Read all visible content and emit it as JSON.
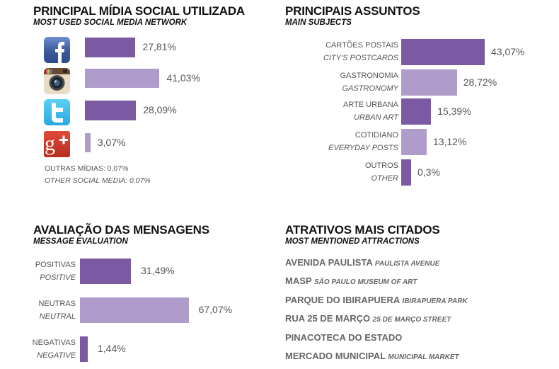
{
  "colors": {
    "dark": "#7b59a3",
    "light": "#b09ccb"
  },
  "chart_data": [
    {
      "type": "bar",
      "orientation": "horizontal",
      "title": "PRINCIPAL MÍDIA SOCIAL UTILIZADA",
      "subtitle": "MOST USED SOCIAL MEDIA NETWORK",
      "categories": [
        "Facebook",
        "Instagram",
        "Twitter",
        "Google+"
      ],
      "values": [
        27.81,
        41.03,
        28.09,
        3.07
      ],
      "value_labels": [
        "27,81%",
        "41,03%",
        "28,09%",
        "3,07%"
      ],
      "icons": [
        "facebook-icon",
        "instagram-icon",
        "twitter-icon",
        "google-plus-icon"
      ],
      "note_pt": "OUTRAS MÍDIAS: 0,07%",
      "note_en": "OTHER SOCIAL MEDIA: 0,07%"
    },
    {
      "type": "bar",
      "orientation": "horizontal",
      "title": "PRINCIPAIS ASSUNTOS",
      "subtitle": "MAIN SUBJECTS",
      "categories": [
        {
          "pt": "CARTÕES POSTAIS",
          "en": "CITY'S POSTCARDS"
        },
        {
          "pt": "GASTRONOMIA",
          "en": "GASTRONOMY"
        },
        {
          "pt": "ARTE URBANA",
          "en": "URBAN ART"
        },
        {
          "pt": "COTIDIANO",
          "en": "EVERYDAY POSTS"
        },
        {
          "pt": "OUTROS",
          "en": "OTHER"
        }
      ],
      "values": [
        43.07,
        28.72,
        15.39,
        13.12,
        0.3
      ],
      "value_labels": [
        "43,07%",
        "28,72%",
        "15,39%",
        "13,12%",
        "0,3%"
      ]
    },
    {
      "type": "bar",
      "orientation": "horizontal",
      "title": "AVALIAÇÃO DAS MENSAGENS",
      "subtitle": "MESSAGE EVALUATION",
      "categories": [
        {
          "pt": "POSITIVAS",
          "en": "POSITIVE"
        },
        {
          "pt": "NEUTRAS",
          "en": "NEUTRAL"
        },
        {
          "pt": "NEGATIVAS",
          "en": "NEGATIVE"
        }
      ],
      "values": [
        31.49,
        67.07,
        1.44
      ],
      "value_labels": [
        "31,49%",
        "67,07%",
        "1,44%"
      ]
    }
  ],
  "attractions": {
    "title": "ATRATIVOS MAIS CITADOS",
    "subtitle": "MOST MENTIONED ATTRACTIONS",
    "items": [
      {
        "pt": "AVENIDA PAULISTA",
        "en": "PAULISTA AVENUE"
      },
      {
        "pt": "MASP",
        "en": "SÃO PAULO MUSEUM OF ART"
      },
      {
        "pt": "PARQUE DO IBIRAPUERA",
        "en": "IBIRAPUERA PARK"
      },
      {
        "pt": "RUA 25 DE MARÇO",
        "en": "25 DE MARÇO STREET"
      },
      {
        "pt": "PINACOTECA DO ESTADO",
        "en": ""
      },
      {
        "pt": "MERCADO MUNICIPAL",
        "en": "MUNICIPAL MARKET"
      }
    ]
  }
}
